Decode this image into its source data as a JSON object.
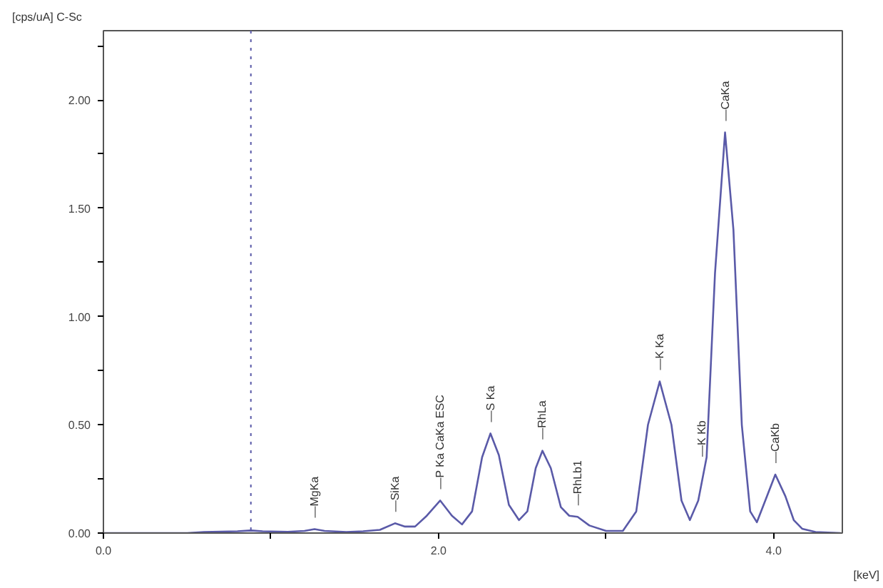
{
  "chart_data": {
    "type": "line",
    "xlabel": "[keV]",
    "ylabel": "[cps/uA] C-Sc",
    "x": [
      0.0,
      0.5,
      0.6,
      0.8,
      0.88,
      0.95,
      1.1,
      1.2,
      1.26,
      1.32,
      1.45,
      1.55,
      1.65,
      1.74,
      1.8,
      1.86,
      1.93,
      2.01,
      2.08,
      2.14,
      2.2,
      2.26,
      2.31,
      2.36,
      2.42,
      2.48,
      2.53,
      2.58,
      2.62,
      2.67,
      2.73,
      2.78,
      2.83,
      2.9,
      3.0,
      3.1,
      3.18,
      3.25,
      3.32,
      3.39,
      3.45,
      3.5,
      3.55,
      3.6,
      3.65,
      3.71,
      3.76,
      3.81,
      3.86,
      3.9,
      3.95,
      4.01,
      4.07,
      4.12,
      4.17,
      4.25,
      4.4
    ],
    "series": [
      {
        "color": "#5a5aa8",
        "values": [
          0.0,
          0.0,
          0.005,
          0.008,
          0.012,
          0.008,
          0.006,
          0.01,
          0.018,
          0.01,
          0.005,
          0.008,
          0.015,
          0.045,
          0.03,
          0.03,
          0.08,
          0.15,
          0.08,
          0.04,
          0.1,
          0.35,
          0.46,
          0.36,
          0.13,
          0.06,
          0.1,
          0.3,
          0.38,
          0.3,
          0.12,
          0.08,
          0.075,
          0.035,
          0.01,
          0.01,
          0.1,
          0.5,
          0.7,
          0.5,
          0.15,
          0.06,
          0.15,
          0.35,
          1.2,
          1.85,
          1.4,
          0.5,
          0.1,
          0.05,
          0.15,
          0.27,
          0.17,
          0.06,
          0.02,
          0.005,
          0.0
        ]
      }
    ],
    "xlim": [
      0.0,
      4.41
    ],
    "ylim": [
      0.0,
      2.32
    ],
    "xticks": [
      {
        "value": 0.0,
        "label": "0.0"
      },
      {
        "value": 1.0,
        "label": null
      },
      {
        "value": 2.0,
        "label": "2.0"
      },
      {
        "value": 3.0,
        "label": null
      },
      {
        "value": 4.0,
        "label": "4.0"
      }
    ],
    "yticks": [
      {
        "value": 0.0,
        "label": "0.00"
      },
      {
        "value": 0.25,
        "label": null
      },
      {
        "value": 0.5,
        "label": "0.50"
      },
      {
        "value": 0.75,
        "label": null
      },
      {
        "value": 1.0,
        "label": "1.00"
      },
      {
        "value": 1.25,
        "label": null
      },
      {
        "value": 1.5,
        "label": "1.50"
      },
      {
        "value": 1.75,
        "label": null
      },
      {
        "value": 2.0,
        "label": "2.00"
      },
      {
        "value": 2.25,
        "label": null
      }
    ],
    "ref_lines": [
      {
        "axis": "x",
        "value": 0.88,
        "line_style": "dotted",
        "color": "#5a5aa8"
      }
    ],
    "annotations": [
      {
        "text": "—MgKa",
        "x": 1.26,
        "y": 0.018
      },
      {
        "text": "—SiKa",
        "x": 1.74,
        "y": 0.045
      },
      {
        "text": "—P Ka CaKa ESC",
        "x": 2.01,
        "y": 0.15
      },
      {
        "text": "—S Ka",
        "x": 2.31,
        "y": 0.46
      },
      {
        "text": "—RhLa",
        "x": 2.62,
        "y": 0.38
      },
      {
        "text": "—RhLb1",
        "x": 2.83,
        "y": 0.075
      },
      {
        "text": "—K Ka",
        "x": 3.32,
        "y": 0.7
      },
      {
        "text": "—K Kb",
        "x": 3.57,
        "y": 0.3
      },
      {
        "text": "—CaKa",
        "x": 3.71,
        "y": 1.85
      },
      {
        "text": "—CaKb",
        "x": 4.01,
        "y": 0.27
      }
    ],
    "grid": false,
    "line_style": "solid",
    "marker": "none"
  }
}
